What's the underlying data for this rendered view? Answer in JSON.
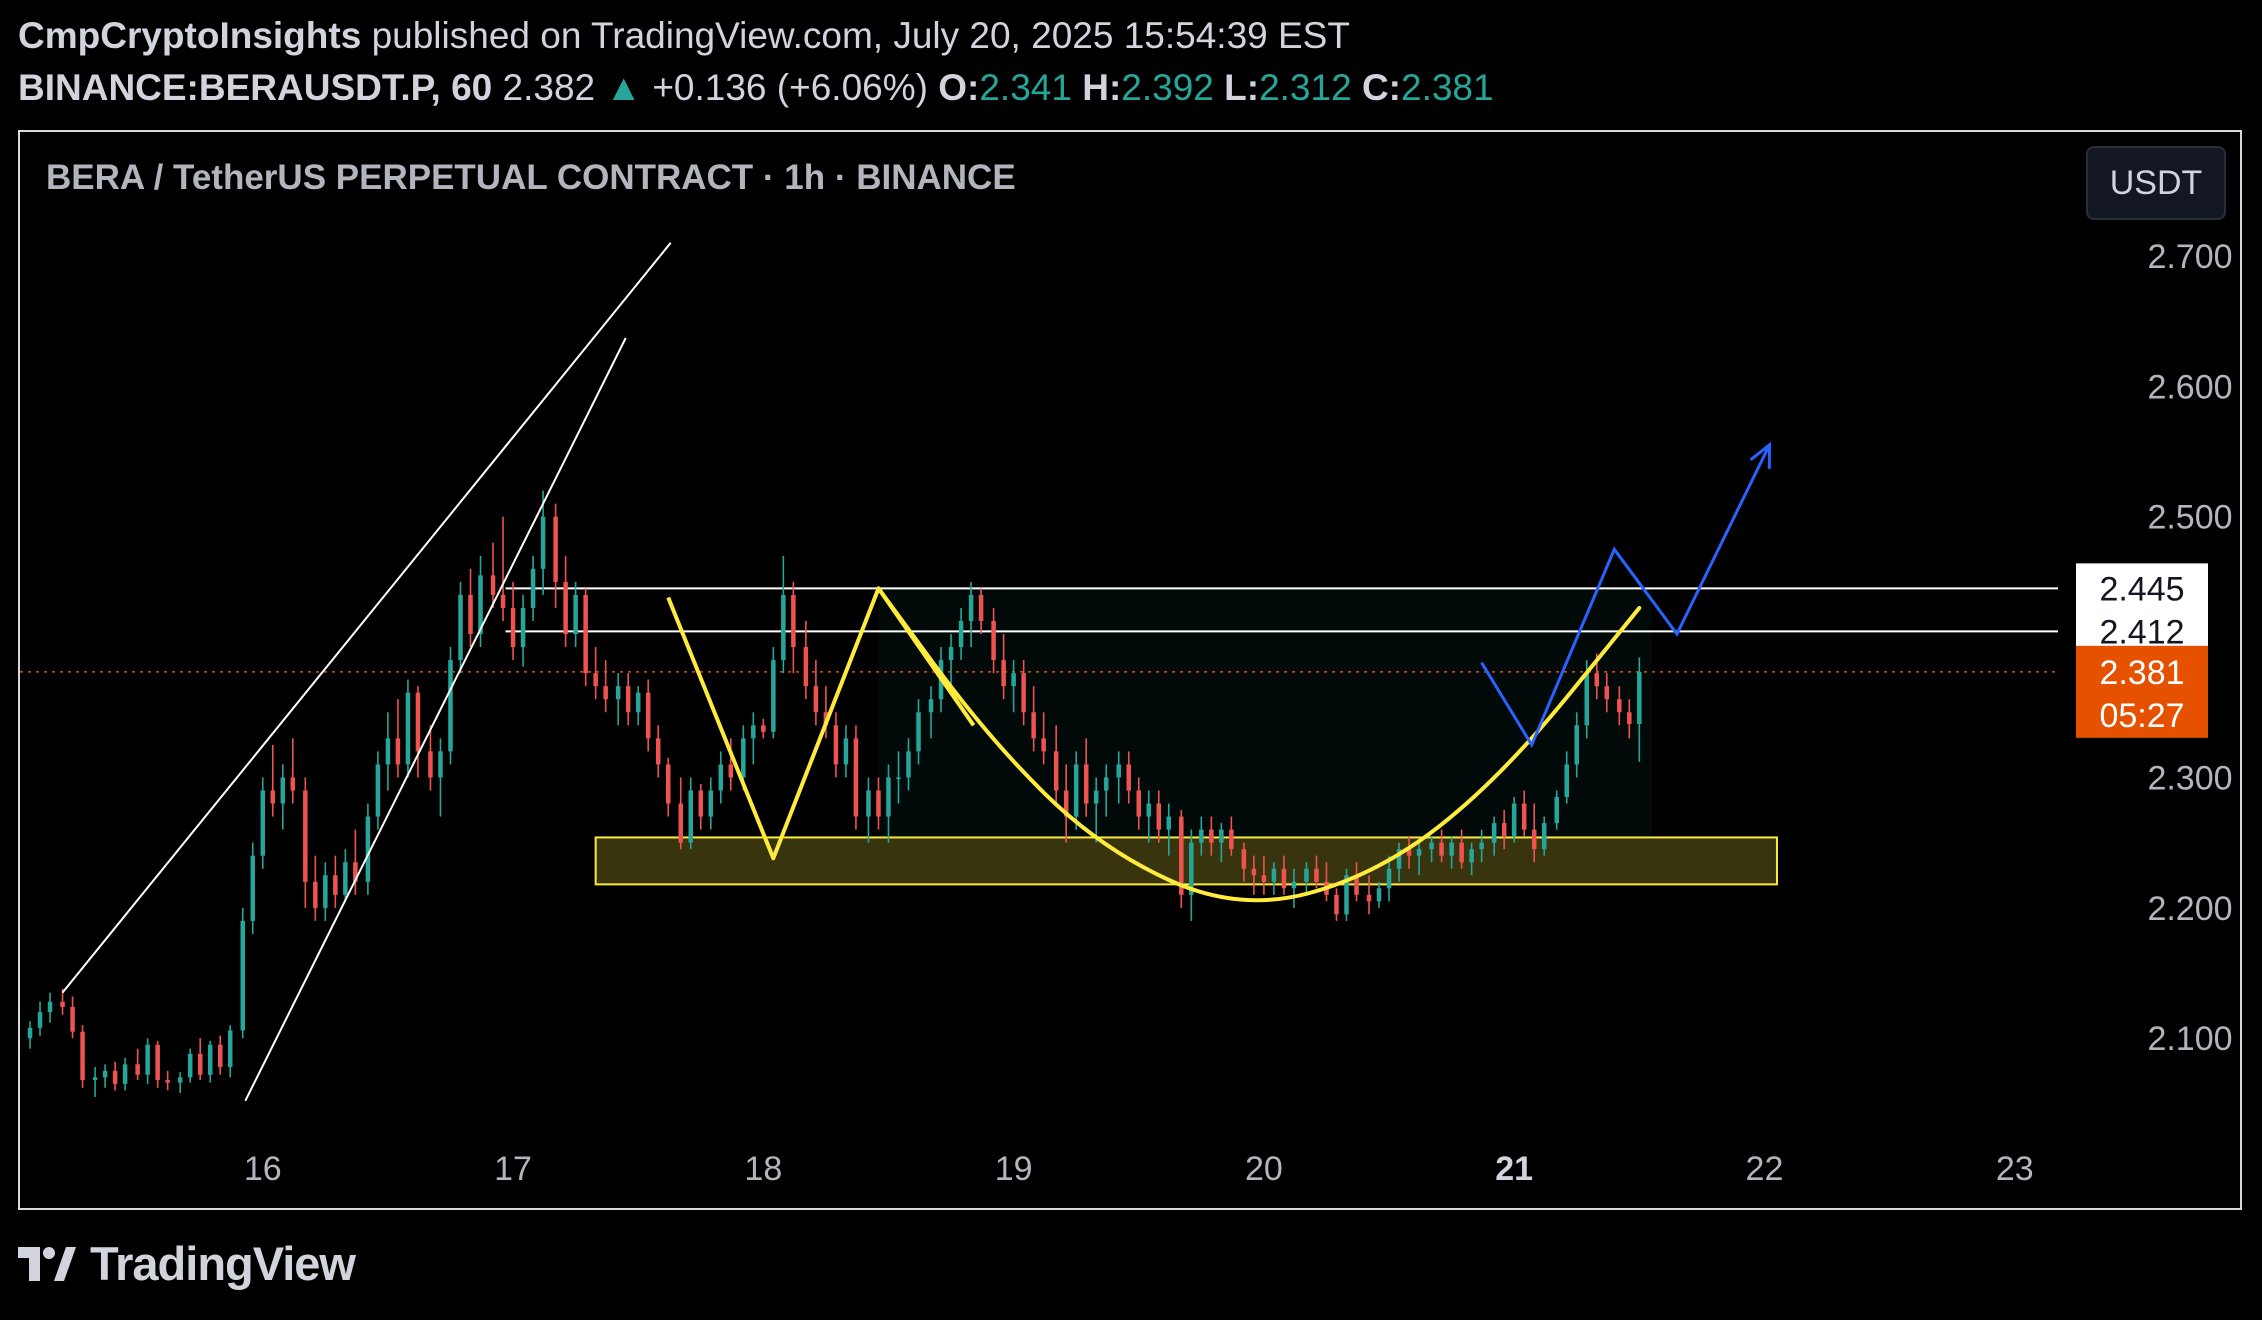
{
  "header": {
    "author": "CmpCryptoInsights",
    "published_text": "published on TradingView.com, July 20, 2025 15:54:39 EST",
    "symbol": "BINANCE:BERAUSDT.P, 60",
    "last_price": "2.382",
    "change_arrow": "▲",
    "change": "+0.136 (+6.06%)",
    "open_label": "O:",
    "open": "2.341",
    "high_label": "H:",
    "high": "2.392",
    "low_label": "L:",
    "low": "2.312",
    "close_label": "C:",
    "close": "2.381"
  },
  "chart_title": "BERA / TetherUS PERPETUAL CONTRACT · 1h · BINANCE",
  "currency_button": "USDT",
  "footer": {
    "brand": "TradingView"
  },
  "colors": {
    "background": "#000000",
    "up_candle": "#26a69a",
    "down_candle": "#ef5350",
    "pattern_line": "#ffeb3b",
    "projection_line": "#2962ff",
    "support_zone": "#ffeb3b",
    "current_price_label": "#e65100"
  },
  "chart_data": {
    "type": "candlestick",
    "x_unit": "day of July 2025",
    "x_tick_labels": [
      "16",
      "17",
      "18",
      "19",
      "20",
      "21",
      "22",
      "23"
    ],
    "x_tick_values": [
      16,
      17,
      18,
      19,
      20,
      21,
      22,
      23
    ],
    "x_bold_tick": "21",
    "xlim": [
      15.03,
      23.9
    ],
    "ylim": [
      2.035,
      2.795
    ],
    "y_tick_labels": [
      "2.700",
      "2.600",
      "2.500",
      "2.300",
      "2.200",
      "2.100"
    ],
    "y_tick_values": [
      2.7,
      2.6,
      2.5,
      2.3,
      2.2,
      2.1
    ],
    "price_labels": [
      {
        "text": "2.445",
        "value": 2.445,
        "style": "white"
      },
      {
        "text": "2.412",
        "value": 2.412,
        "style": "white"
      },
      {
        "text": "2.381",
        "value": 2.381,
        "style": "current"
      }
    ],
    "countdown": "05:27",
    "resistance_levels": [
      2.445,
      2.412
    ],
    "current_price": 2.381,
    "support_zone": {
      "x0": 17.33,
      "x1": 22.05,
      "y_low": 2.218,
      "y_high": 2.254
    },
    "channel_lines": [
      {
        "points": [
          [
            15.2,
            2.135
          ],
          [
            17.63,
            2.71
          ]
        ]
      },
      {
        "points": [
          [
            15.93,
            2.052
          ],
          [
            17.45,
            2.637
          ]
        ]
      }
    ],
    "double_top_path": [
      [
        17.62,
        2.438
      ],
      [
        18.04,
        2.238
      ],
      [
        18.46,
        2.445
      ],
      [
        18.84,
        2.34
      ]
    ],
    "cup_curve": [
      [
        18.46,
        2.445
      ],
      [
        18.9,
        2.33
      ],
      [
        19.35,
        2.245
      ],
      [
        19.9,
        2.197
      ],
      [
        20.45,
        2.225
      ],
      [
        20.95,
        2.3
      ],
      [
        21.5,
        2.43
      ]
    ],
    "projection_path": [
      [
        20.87,
        2.388
      ],
      [
        21.07,
        2.325
      ],
      [
        21.4,
        2.475
      ],
      [
        21.65,
        2.41
      ],
      [
        22.02,
        2.555
      ]
    ],
    "candles": [
      [
        15.07,
        2.1,
        2.113,
        2.092,
        2.108
      ],
      [
        15.11,
        2.108,
        2.128,
        2.102,
        2.12
      ],
      [
        15.15,
        2.12,
        2.135,
        2.112,
        2.128
      ],
      [
        15.2,
        2.128,
        2.138,
        2.118,
        2.124
      ],
      [
        15.24,
        2.124,
        2.132,
        2.1,
        2.105
      ],
      [
        15.28,
        2.105,
        2.11,
        2.062,
        2.068
      ],
      [
        15.33,
        2.068,
        2.078,
        2.055,
        2.07
      ],
      [
        15.37,
        2.07,
        2.08,
        2.062,
        2.075
      ],
      [
        15.41,
        2.075,
        2.082,
        2.06,
        2.065
      ],
      [
        15.45,
        2.065,
        2.085,
        2.06,
        2.08
      ],
      [
        15.5,
        2.08,
        2.092,
        2.068,
        2.072
      ],
      [
        15.54,
        2.072,
        2.1,
        2.065,
        2.095
      ],
      [
        15.58,
        2.095,
        2.098,
        2.062,
        2.068
      ],
      [
        15.62,
        2.068,
        2.075,
        2.06,
        2.066
      ],
      [
        15.67,
        2.066,
        2.074,
        2.058,
        2.07
      ],
      [
        15.71,
        2.07,
        2.092,
        2.066,
        2.088
      ],
      [
        15.75,
        2.088,
        2.1,
        2.068,
        2.072
      ],
      [
        15.79,
        2.072,
        2.098,
        2.066,
        2.095
      ],
      [
        15.83,
        2.095,
        2.102,
        2.072,
        2.078
      ],
      [
        15.87,
        2.078,
        2.11,
        2.07,
        2.106
      ],
      [
        15.92,
        2.106,
        2.2,
        2.1,
        2.19
      ],
      [
        15.96,
        2.19,
        2.25,
        2.18,
        2.24
      ],
      [
        16.0,
        2.24,
        2.3,
        2.23,
        2.29
      ],
      [
        16.04,
        2.29,
        2.325,
        2.27,
        2.28
      ],
      [
        16.08,
        2.28,
        2.31,
        2.26,
        2.3
      ],
      [
        16.12,
        2.3,
        2.33,
        2.28,
        2.29
      ],
      [
        16.17,
        2.29,
        2.3,
        2.2,
        2.22
      ],
      [
        16.21,
        2.22,
        2.24,
        2.19,
        2.2
      ],
      [
        16.25,
        2.2,
        2.235,
        2.19,
        2.225
      ],
      [
        16.29,
        2.225,
        2.24,
        2.2,
        2.21
      ],
      [
        16.33,
        2.21,
        2.245,
        2.205,
        2.235
      ],
      [
        16.37,
        2.235,
        2.26,
        2.21,
        2.22
      ],
      [
        16.42,
        2.22,
        2.28,
        2.21,
        2.27
      ],
      [
        16.46,
        2.27,
        2.32,
        2.26,
        2.31
      ],
      [
        16.5,
        2.31,
        2.35,
        2.29,
        2.33
      ],
      [
        16.54,
        2.33,
        2.36,
        2.3,
        2.31
      ],
      [
        16.58,
        2.31,
        2.375,
        2.3,
        2.365
      ],
      [
        16.62,
        2.365,
        2.37,
        2.3,
        2.32
      ],
      [
        16.67,
        2.32,
        2.34,
        2.29,
        2.3
      ],
      [
        16.71,
        2.3,
        2.33,
        2.27,
        2.32
      ],
      [
        16.75,
        2.32,
        2.4,
        2.31,
        2.39
      ],
      [
        16.79,
        2.39,
        2.45,
        2.38,
        2.44
      ],
      [
        16.83,
        2.44,
        2.46,
        2.4,
        2.41
      ],
      [
        16.87,
        2.41,
        2.47,
        2.4,
        2.455
      ],
      [
        16.92,
        2.455,
        2.48,
        2.43,
        2.44
      ],
      [
        16.96,
        2.44,
        2.5,
        2.42,
        2.43
      ],
      [
        17.0,
        2.43,
        2.45,
        2.39,
        2.4
      ],
      [
        17.04,
        2.4,
        2.44,
        2.385,
        2.43
      ],
      [
        17.08,
        2.43,
        2.47,
        2.42,
        2.46
      ],
      [
        17.12,
        2.46,
        2.52,
        2.44,
        2.5
      ],
      [
        17.17,
        2.5,
        2.51,
        2.43,
        2.45
      ],
      [
        17.21,
        2.45,
        2.47,
        2.4,
        2.41
      ],
      [
        17.25,
        2.41,
        2.45,
        2.4,
        2.44
      ],
      [
        17.29,
        2.44,
        2.445,
        2.37,
        2.38
      ],
      [
        17.33,
        2.38,
        2.4,
        2.36,
        2.37
      ],
      [
        17.37,
        2.37,
        2.39,
        2.35,
        2.36
      ],
      [
        17.42,
        2.36,
        2.38,
        2.34,
        2.37
      ],
      [
        17.46,
        2.37,
        2.38,
        2.34,
        2.35
      ],
      [
        17.5,
        2.35,
        2.37,
        2.34,
        2.365
      ],
      [
        17.54,
        2.365,
        2.375,
        2.32,
        2.33
      ],
      [
        17.58,
        2.33,
        2.34,
        2.3,
        2.31
      ],
      [
        17.62,
        2.31,
        2.315,
        2.27,
        2.28
      ],
      [
        17.67,
        2.28,
        2.3,
        2.245,
        2.25
      ],
      [
        17.71,
        2.25,
        2.3,
        2.245,
        2.29
      ],
      [
        17.75,
        2.29,
        2.295,
        2.26,
        2.27
      ],
      [
        17.79,
        2.27,
        2.3,
        2.26,
        2.29
      ],
      [
        17.83,
        2.29,
        2.32,
        2.28,
        2.31
      ],
      [
        17.87,
        2.31,
        2.33,
        2.29,
        2.3
      ],
      [
        17.92,
        2.3,
        2.34,
        2.29,
        2.33
      ],
      [
        17.96,
        2.33,
        2.35,
        2.31,
        2.34
      ],
      [
        18.0,
        2.34,
        2.345,
        2.33,
        2.335
      ],
      [
        18.04,
        2.335,
        2.4,
        2.33,
        2.39
      ],
      [
        18.08,
        2.39,
        2.47,
        2.38,
        2.44
      ],
      [
        18.12,
        2.44,
        2.45,
        2.38,
        2.4
      ],
      [
        18.17,
        2.4,
        2.42,
        2.36,
        2.37
      ],
      [
        18.21,
        2.37,
        2.39,
        2.34,
        2.35
      ],
      [
        18.25,
        2.35,
        2.37,
        2.33,
        2.34
      ],
      [
        18.29,
        2.34,
        2.35,
        2.3,
        2.31
      ],
      [
        18.33,
        2.31,
        2.34,
        2.3,
        2.33
      ],
      [
        18.37,
        2.33,
        2.34,
        2.26,
        2.27
      ],
      [
        18.42,
        2.27,
        2.3,
        2.25,
        2.29
      ],
      [
        18.46,
        2.29,
        2.3,
        2.26,
        2.27
      ],
      [
        18.5,
        2.27,
        2.31,
        2.25,
        2.3
      ],
      [
        18.54,
        2.3,
        2.32,
        2.28,
        2.3
      ],
      [
        18.58,
        2.3,
        2.33,
        2.29,
        2.32
      ],
      [
        18.62,
        2.32,
        2.36,
        2.31,
        2.35
      ],
      [
        18.67,
        2.35,
        2.37,
        2.33,
        2.36
      ],
      [
        18.71,
        2.36,
        2.4,
        2.35,
        2.39
      ],
      [
        18.75,
        2.39,
        2.41,
        2.37,
        2.4
      ],
      [
        18.79,
        2.4,
        2.43,
        2.39,
        2.42
      ],
      [
        18.83,
        2.42,
        2.45,
        2.4,
        2.44
      ],
      [
        18.87,
        2.44,
        2.445,
        2.41,
        2.42
      ],
      [
        18.92,
        2.42,
        2.43,
        2.38,
        2.39
      ],
      [
        18.96,
        2.39,
        2.41,
        2.36,
        2.37
      ],
      [
        19.0,
        2.37,
        2.39,
        2.35,
        2.38
      ],
      [
        19.04,
        2.38,
        2.39,
        2.34,
        2.35
      ],
      [
        19.08,
        2.35,
        2.37,
        2.32,
        2.33
      ],
      [
        19.12,
        2.33,
        2.35,
        2.31,
        2.32
      ],
      [
        19.17,
        2.32,
        2.34,
        2.28,
        2.29
      ],
      [
        19.21,
        2.29,
        2.31,
        2.25,
        2.27
      ],
      [
        19.25,
        2.27,
        2.32,
        2.26,
        2.31
      ],
      [
        19.29,
        2.31,
        2.33,
        2.27,
        2.28
      ],
      [
        19.33,
        2.28,
        2.3,
        2.25,
        2.29
      ],
      [
        19.37,
        2.29,
        2.31,
        2.27,
        2.3
      ],
      [
        19.42,
        2.3,
        2.32,
        2.28,
        2.31
      ],
      [
        19.46,
        2.31,
        2.32,
        2.28,
        2.29
      ],
      [
        19.5,
        2.29,
        2.3,
        2.26,
        2.27
      ],
      [
        19.54,
        2.27,
        2.29,
        2.25,
        2.28
      ],
      [
        19.58,
        2.28,
        2.29,
        2.25,
        2.26
      ],
      [
        19.62,
        2.26,
        2.28,
        2.24,
        2.27
      ],
      [
        19.67,
        2.27,
        2.275,
        2.2,
        2.21
      ],
      [
        19.71,
        2.21,
        2.26,
        2.19,
        2.25
      ],
      [
        19.75,
        2.25,
        2.27,
        2.24,
        2.26
      ],
      [
        19.79,
        2.26,
        2.27,
        2.24,
        2.25
      ],
      [
        19.83,
        2.25,
        2.265,
        2.235,
        2.26
      ],
      [
        19.87,
        2.26,
        2.27,
        2.24,
        2.245
      ],
      [
        19.92,
        2.245,
        2.25,
        2.22,
        2.23
      ],
      [
        19.96,
        2.23,
        2.24,
        2.21,
        2.225
      ],
      [
        20.0,
        2.225,
        2.24,
        2.21,
        2.22
      ],
      [
        20.04,
        2.22,
        2.235,
        2.21,
        2.23
      ],
      [
        20.08,
        2.23,
        2.24,
        2.21,
        2.215
      ],
      [
        20.12,
        2.215,
        2.23,
        2.2,
        2.22
      ],
      [
        20.17,
        2.22,
        2.235,
        2.21,
        2.23
      ],
      [
        20.21,
        2.23,
        2.24,
        2.215,
        2.22
      ],
      [
        20.25,
        2.22,
        2.235,
        2.205,
        2.21
      ],
      [
        20.29,
        2.21,
        2.215,
        2.19,
        2.195
      ],
      [
        20.33,
        2.195,
        2.23,
        2.19,
        2.225
      ],
      [
        20.37,
        2.225,
        2.235,
        2.205,
        2.21
      ],
      [
        20.42,
        2.21,
        2.225,
        2.195,
        2.205
      ],
      [
        20.46,
        2.205,
        2.22,
        2.2,
        2.215
      ],
      [
        20.5,
        2.215,
        2.24,
        2.205,
        2.23
      ],
      [
        20.54,
        2.23,
        2.25,
        2.22,
        2.245
      ],
      [
        20.58,
        2.245,
        2.255,
        2.23,
        2.24
      ],
      [
        20.62,
        2.24,
        2.25,
        2.225,
        2.245
      ],
      [
        20.67,
        2.245,
        2.255,
        2.235,
        2.25
      ],
      [
        20.71,
        2.25,
        2.26,
        2.235,
        2.24
      ],
      [
        20.75,
        2.24,
        2.255,
        2.23,
        2.25
      ],
      [
        20.79,
        2.25,
        2.26,
        2.23,
        2.235
      ],
      [
        20.83,
        2.235,
        2.25,
        2.225,
        2.245
      ],
      [
        20.87,
        2.245,
        2.26,
        2.235,
        2.25
      ],
      [
        20.92,
        2.25,
        2.27,
        2.24,
        2.265
      ],
      [
        20.96,
        2.265,
        2.275,
        2.245,
        2.255
      ],
      [
        21.0,
        2.255,
        2.285,
        2.25,
        2.28
      ],
      [
        21.04,
        2.28,
        2.29,
        2.255,
        2.26
      ],
      [
        21.08,
        2.26,
        2.28,
        2.235,
        2.245
      ],
      [
        21.12,
        2.245,
        2.27,
        2.24,
        2.265
      ],
      [
        21.17,
        2.265,
        2.29,
        2.26,
        2.285
      ],
      [
        21.21,
        2.285,
        2.32,
        2.28,
        2.31
      ],
      [
        21.25,
        2.31,
        2.35,
        2.3,
        2.34
      ],
      [
        21.29,
        2.34,
        2.39,
        2.33,
        2.38
      ],
      [
        21.33,
        2.38,
        2.395,
        2.36,
        2.37
      ],
      [
        21.37,
        2.37,
        2.38,
        2.35,
        2.36
      ],
      [
        21.42,
        2.36,
        2.37,
        2.34,
        2.35
      ],
      [
        21.46,
        2.35,
        2.36,
        2.33,
        2.341
      ],
      [
        21.5,
        2.341,
        2.392,
        2.312,
        2.381
      ]
    ]
  }
}
